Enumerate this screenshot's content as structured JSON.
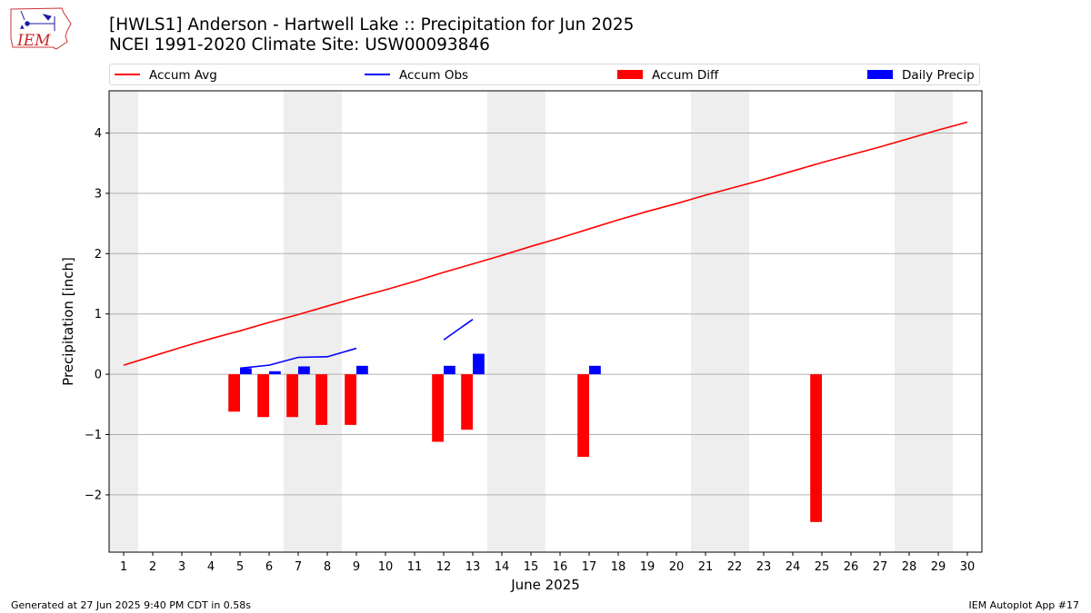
{
  "header": {
    "title_line1": "[HWLS1] Anderson - Hartwell Lake :: Precipitation for Jun 2025",
    "title_line2": "NCEI 1991-2020 Climate Site: USW00093846",
    "logo_text": "IEM"
  },
  "footer": {
    "generated": "Generated at 27 Jun 2025 9:40 PM CDT in 0.58s",
    "app": "IEM Autoplot App #17"
  },
  "colors": {
    "avg": "#ff0000",
    "obs": "#0000ff",
    "diff": "#ff0000",
    "daily": "#0000ff",
    "weekend": "#eeeeee",
    "grid": "#b0b0b0"
  },
  "chart_data": {
    "type": "bar",
    "xlabel": "June 2025",
    "ylabel": "Precipitation [inch]",
    "xlim": [
      0.5,
      30.5
    ],
    "ylim": [
      -2.95,
      4.7
    ],
    "yticks": [
      -2,
      -1,
      0,
      1,
      2,
      3,
      4
    ],
    "ytick_labels": [
      "−2",
      "−1",
      "0",
      "1",
      "2",
      "3",
      "4"
    ],
    "days": [
      1,
      2,
      3,
      4,
      5,
      6,
      7,
      8,
      9,
      10,
      11,
      12,
      13,
      14,
      15,
      16,
      17,
      18,
      19,
      20,
      21,
      22,
      23,
      24,
      25,
      26,
      27,
      28,
      29,
      30
    ],
    "grid": "horizontal",
    "legend_position": "top",
    "shaded_days": [
      1,
      7,
      8,
      14,
      15,
      21,
      22,
      28,
      29
    ],
    "legend": [
      "Accum Avg",
      "Accum Obs",
      "Accum Diff",
      "Daily Precip"
    ],
    "series": [
      {
        "name": "Accum Avg",
        "kind": "line",
        "x": [
          1,
          2,
          3,
          4,
          5,
          6,
          7,
          8,
          9,
          10,
          11,
          12,
          13,
          14,
          15,
          16,
          17,
          18,
          19,
          20,
          21,
          22,
          23,
          24,
          25,
          26,
          27,
          28,
          29,
          30
        ],
        "values": [
          0.15,
          0.3,
          0.45,
          0.59,
          0.72,
          0.86,
          0.99,
          1.13,
          1.27,
          1.4,
          1.54,
          1.69,
          1.83,
          1.97,
          2.12,
          2.26,
          2.41,
          2.56,
          2.7,
          2.83,
          2.97,
          3.1,
          3.23,
          3.37,
          3.51,
          3.64,
          3.77,
          3.91,
          4.05,
          4.18
        ]
      },
      {
        "name": "Accum Obs",
        "kind": "line",
        "segments": [
          {
            "x": [
              5,
              6,
              7,
              8,
              9
            ],
            "values": [
              0.1,
              0.15,
              0.28,
              0.29,
              0.43
            ]
          },
          {
            "x": [
              12,
              13
            ],
            "values": [
              0.57,
              0.91
            ]
          }
        ]
      },
      {
        "name": "Accum Diff",
        "kind": "bar",
        "x": [
          5,
          6,
          7,
          8,
          9,
          12,
          13,
          17,
          25
        ],
        "values": [
          -0.62,
          -0.71,
          -0.71,
          -0.84,
          -0.84,
          -1.12,
          -0.92,
          -1.37,
          -2.45
        ]
      },
      {
        "name": "Daily Precip",
        "kind": "bar",
        "x": [
          5,
          6,
          7,
          9,
          12,
          13,
          17
        ],
        "values": [
          0.1,
          0.05,
          0.13,
          0.14,
          0.14,
          0.34,
          0.14
        ]
      }
    ]
  }
}
